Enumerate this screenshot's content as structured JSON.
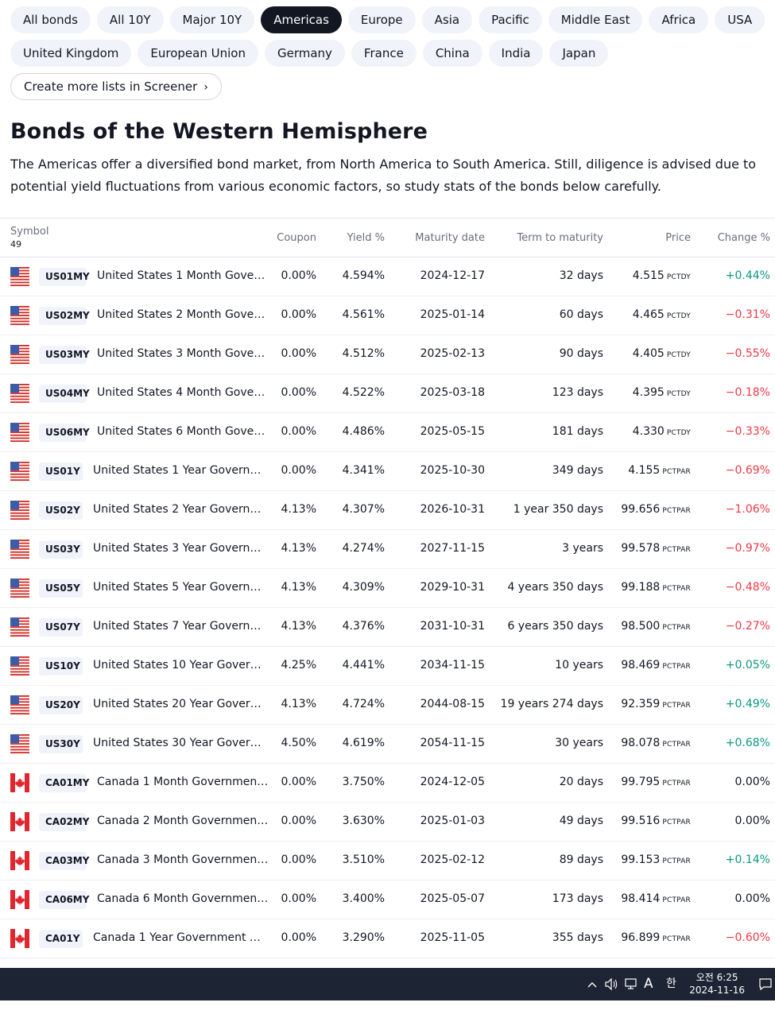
{
  "filters": {
    "row1": [
      "All bonds",
      "All 10Y",
      "Major 10Y",
      "Americas",
      "Europe",
      "Asia",
      "Pacific",
      "Middle East",
      "Africa",
      "USA"
    ],
    "row2": [
      "United Kingdom",
      "European Union",
      "Germany",
      "France",
      "China",
      "India",
      "Japan"
    ],
    "active": "Americas",
    "screener_link": "Create more lists in Screener"
  },
  "section": {
    "title": "Bonds of the Western Hemisphere",
    "description": "The Americas offer a diversified bond market, from North America to South America. Still, diligence is advised due to potential yield fluctuations from various economic factors, so study stats of the bonds below carefully."
  },
  "table": {
    "headers": {
      "symbol": "Symbol",
      "count": "49",
      "coupon": "Coupon",
      "yield": "Yield %",
      "maturity": "Maturity date",
      "term": "Term to maturity",
      "price": "Price",
      "change": "Change %"
    },
    "rows": [
      {
        "flag": "us",
        "ticker": "US01MY",
        "name": "United States 1 Month Gove…",
        "coupon": "0.00%",
        "yield": "4.594%",
        "maturity": "2024-12-17",
        "term": "32 days",
        "price": "4.515",
        "unit": "PCTDY",
        "change": "+0.44%",
        "dir": "pos"
      },
      {
        "flag": "us",
        "ticker": "US02MY",
        "name": "United States 2 Month Gove…",
        "coupon": "0.00%",
        "yield": "4.561%",
        "maturity": "2025-01-14",
        "term": "60 days",
        "price": "4.465",
        "unit": "PCTDY",
        "change": "−0.31%",
        "dir": "neg"
      },
      {
        "flag": "us",
        "ticker": "US03MY",
        "name": "United States 3 Month Gove…",
        "coupon": "0.00%",
        "yield": "4.512%",
        "maturity": "2025-02-13",
        "term": "90 days",
        "price": "4.405",
        "unit": "PCTDY",
        "change": "−0.55%",
        "dir": "neg"
      },
      {
        "flag": "us",
        "ticker": "US04MY",
        "name": "United States 4 Month Gove…",
        "coupon": "0.00%",
        "yield": "4.522%",
        "maturity": "2025-03-18",
        "term": "123 days",
        "price": "4.395",
        "unit": "PCTDY",
        "change": "−0.18%",
        "dir": "neg"
      },
      {
        "flag": "us",
        "ticker": "US06MY",
        "name": "United States 6 Month Gove…",
        "coupon": "0.00%",
        "yield": "4.486%",
        "maturity": "2025-05-15",
        "term": "181 days",
        "price": "4.330",
        "unit": "PCTDY",
        "change": "−0.33%",
        "dir": "neg"
      },
      {
        "flag": "us",
        "ticker": "US01Y",
        "name": "United States 1 Year Govern…",
        "coupon": "0.00%",
        "yield": "4.341%",
        "maturity": "2025-10-30",
        "term": "349 days",
        "price": "4.155",
        "unit": "PCTPAR",
        "change": "−0.69%",
        "dir": "neg"
      },
      {
        "flag": "us",
        "ticker": "US02Y",
        "name": "United States 2 Year Govern…",
        "coupon": "4.13%",
        "yield": "4.307%",
        "maturity": "2026-10-31",
        "term": "1 year 350 days",
        "price": "99.656",
        "unit": "PCTPAR",
        "change": "−1.06%",
        "dir": "neg"
      },
      {
        "flag": "us",
        "ticker": "US03Y",
        "name": "United States 3 Year Govern…",
        "coupon": "4.13%",
        "yield": "4.274%",
        "maturity": "2027-11-15",
        "term": "3 years",
        "price": "99.578",
        "unit": "PCTPAR",
        "change": "−0.97%",
        "dir": "neg"
      },
      {
        "flag": "us",
        "ticker": "US05Y",
        "name": "United States 5 Year Govern…",
        "coupon": "4.13%",
        "yield": "4.309%",
        "maturity": "2029-10-31",
        "term": "4 years 350 days",
        "price": "99.188",
        "unit": "PCTPAR",
        "change": "−0.48%",
        "dir": "neg"
      },
      {
        "flag": "us",
        "ticker": "US07Y",
        "name": "United States 7 Year Govern…",
        "coupon": "4.13%",
        "yield": "4.376%",
        "maturity": "2031-10-31",
        "term": "6 years 350 days",
        "price": "98.500",
        "unit": "PCTPAR",
        "change": "−0.27%",
        "dir": "neg"
      },
      {
        "flag": "us",
        "ticker": "US10Y",
        "name": "United States 10 Year Gover…",
        "coupon": "4.25%",
        "yield": "4.441%",
        "maturity": "2034-11-15",
        "term": "10 years",
        "price": "98.469",
        "unit": "PCTPAR",
        "change": "+0.05%",
        "dir": "pos"
      },
      {
        "flag": "us",
        "ticker": "US20Y",
        "name": "United States 20 Year Gover…",
        "coupon": "4.13%",
        "yield": "4.724%",
        "maturity": "2044-08-15",
        "term": "19 years 274 days",
        "price": "92.359",
        "unit": "PCTPAR",
        "change": "+0.49%",
        "dir": "pos"
      },
      {
        "flag": "us",
        "ticker": "US30Y",
        "name": "United States 30 Year Gover…",
        "coupon": "4.50%",
        "yield": "4.619%",
        "maturity": "2054-11-15",
        "term": "30 years",
        "price": "98.078",
        "unit": "PCTPAR",
        "change": "+0.68%",
        "dir": "pos"
      },
      {
        "flag": "ca",
        "ticker": "CA01MY",
        "name": "Canada 1 Month Governmen…",
        "coupon": "0.00%",
        "yield": "3.750%",
        "maturity": "2024-12-05",
        "term": "20 days",
        "price": "99.795",
        "unit": "PCTPAR",
        "change": "0.00%",
        "dir": "zero"
      },
      {
        "flag": "ca",
        "ticker": "CA02MY",
        "name": "Canada 2 Month Governmen…",
        "coupon": "0.00%",
        "yield": "3.630%",
        "maturity": "2025-01-03",
        "term": "49 days",
        "price": "99.516",
        "unit": "PCTPAR",
        "change": "0.00%",
        "dir": "zero"
      },
      {
        "flag": "ca",
        "ticker": "CA03MY",
        "name": "Canada 3 Month Governmen…",
        "coupon": "0.00%",
        "yield": "3.510%",
        "maturity": "2025-02-12",
        "term": "89 days",
        "price": "99.153",
        "unit": "PCTPAR",
        "change": "+0.14%",
        "dir": "pos"
      },
      {
        "flag": "ca",
        "ticker": "CA06MY",
        "name": "Canada 6 Month Governmen…",
        "coupon": "0.00%",
        "yield": "3.400%",
        "maturity": "2025-05-07",
        "term": "173 days",
        "price": "98.414",
        "unit": "PCTPAR",
        "change": "0.00%",
        "dir": "zero"
      },
      {
        "flag": "ca",
        "ticker": "CA01Y",
        "name": "Canada 1 Year Government …",
        "coupon": "0.00%",
        "yield": "3.290%",
        "maturity": "2025-11-05",
        "term": "355 days",
        "price": "96.899",
        "unit": "PCTPAR",
        "change": "−0.60%",
        "dir": "neg"
      }
    ]
  },
  "taskbar": {
    "ime_letter": "A",
    "ime_korean": "한",
    "time": "오전 6:25",
    "date": "2024-11-16",
    "icons": [
      "chevron-up-icon",
      "speaker-icon",
      "network-icon",
      "notification-icon"
    ]
  },
  "colors": {
    "positive": "#089981",
    "negative": "#f23645",
    "active_chip": "#131722",
    "chip_bg": "#f0f3fa"
  }
}
